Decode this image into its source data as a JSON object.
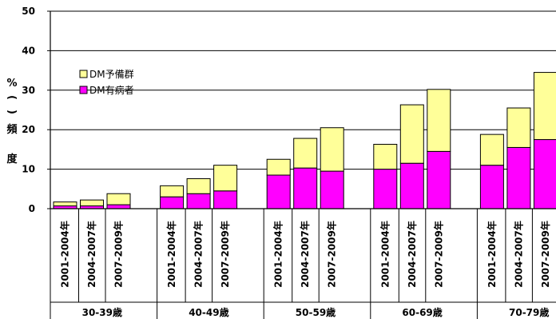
{
  "chart_data": {
    "type": "bar",
    "stacked": true,
    "title": "",
    "ylabel_chars": [
      "%",
      "(",
      ")",
      "頻",
      "度"
    ],
    "ylim": [
      0,
      50
    ],
    "yticks": [
      0,
      10,
      20,
      30,
      40,
      50
    ],
    "groups": [
      "30-39歳",
      "40-49歳",
      "50-59歳",
      "60-69歳",
      "70-79歳"
    ],
    "categories": [
      "2001-2004年",
      "2004-2007年",
      "2007-2009年"
    ],
    "series": [
      {
        "name": "DM有病者",
        "color": "#ff00ff",
        "values": [
          [
            0.7,
            0.7,
            1.0
          ],
          [
            3.0,
            3.8,
            4.5
          ],
          [
            8.5,
            10.3,
            9.5
          ],
          [
            10.0,
            11.5,
            14.5
          ],
          [
            11.0,
            15.5,
            17.5
          ]
        ]
      },
      {
        "name": "DM予備群",
        "color": "#ffff99",
        "values": [
          [
            1.0,
            1.5,
            2.8
          ],
          [
            2.8,
            3.8,
            6.5
          ],
          [
            4.0,
            7.5,
            11.0
          ],
          [
            6.3,
            14.8,
            15.7
          ],
          [
            7.8,
            10.0,
            17.0
          ]
        ]
      }
    ],
    "legend": {
      "position": "top-left",
      "entries": [
        {
          "label": "DM予備群",
          "color": "#ffff99"
        },
        {
          "label": "DM有病者",
          "color": "#ff00ff"
        }
      ]
    },
    "grid": true
  }
}
